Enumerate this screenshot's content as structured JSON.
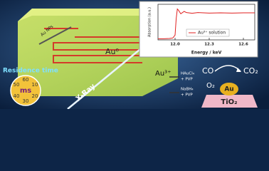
{
  "labels": {
    "au_nps": "Au NPs",
    "au0": "Au⁰",
    "au3": "Au³⁺",
    "hauCl4": "HAuCl₄",
    "pvp1": "+ PVP",
    "nabh4": "NaBH₄",
    "pvp2": "+ PVP",
    "xray": "X-Ray",
    "residence": "Residence time"
  },
  "clock": {
    "numbers": [
      "60",
      "10",
      "50",
      "20",
      "40",
      "30"
    ],
    "unit": "ms"
  },
  "reaction": {
    "co": "CO",
    "co2": "CO₂",
    "o2": "O₂",
    "au": "Au",
    "support": "TiO₂"
  },
  "chart_data": {
    "type": "line",
    "x_label": "Energy / keV",
    "y_label": "Absorption (a.u.)",
    "x": [
      11.85,
      11.9,
      11.95,
      11.98,
      12.0,
      12.01,
      12.02,
      12.03,
      12.05,
      12.08,
      12.1,
      12.15,
      12.2,
      12.3,
      12.4,
      12.5,
      12.6,
      12.7
    ],
    "series": [
      {
        "name": "Au³⁺ solution",
        "color": "#e02020",
        "values": [
          0.05,
          0.05,
          0.06,
          0.08,
          0.2,
          0.9,
          1.3,
          1.25,
          1.1,
          1.2,
          1.15,
          1.12,
          1.15,
          1.13,
          1.14,
          1.13,
          1.14,
          1.14
        ]
      }
    ],
    "xlim": [
      11.85,
      12.7
    ],
    "ylim": [
      0,
      1.5
    ],
    "xticks": [
      {
        "value": 12,
        "label": "12.0"
      },
      12.3,
      12.6
    ],
    "legend": "lower right"
  }
}
